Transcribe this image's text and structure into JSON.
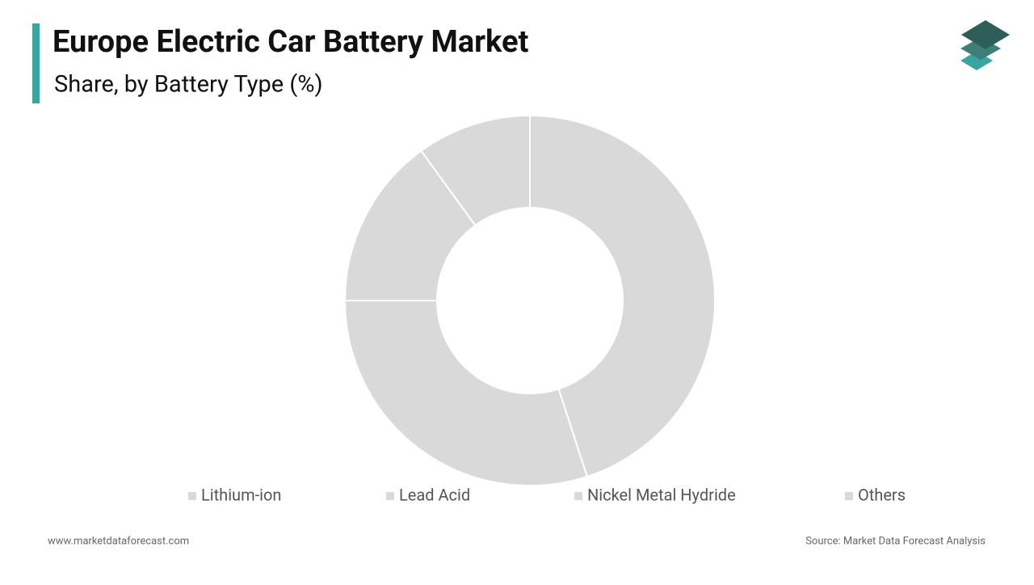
{
  "chart_data": {
    "type": "donut",
    "title": "Europe Electric Car Battery Market",
    "subtitle": "Share, by Battery Type (%)",
    "categories": [
      "Lithium-ion",
      "Lead Acid",
      "Nickel Metal Hydride",
      "Others"
    ],
    "values": [
      45,
      30,
      15,
      10
    ],
    "color": "#d9d9d9",
    "legend": "bottom"
  },
  "footer": {
    "website": "www.marketdataforecast.com",
    "source": "Source: Market Data Forecast Analysis"
  }
}
